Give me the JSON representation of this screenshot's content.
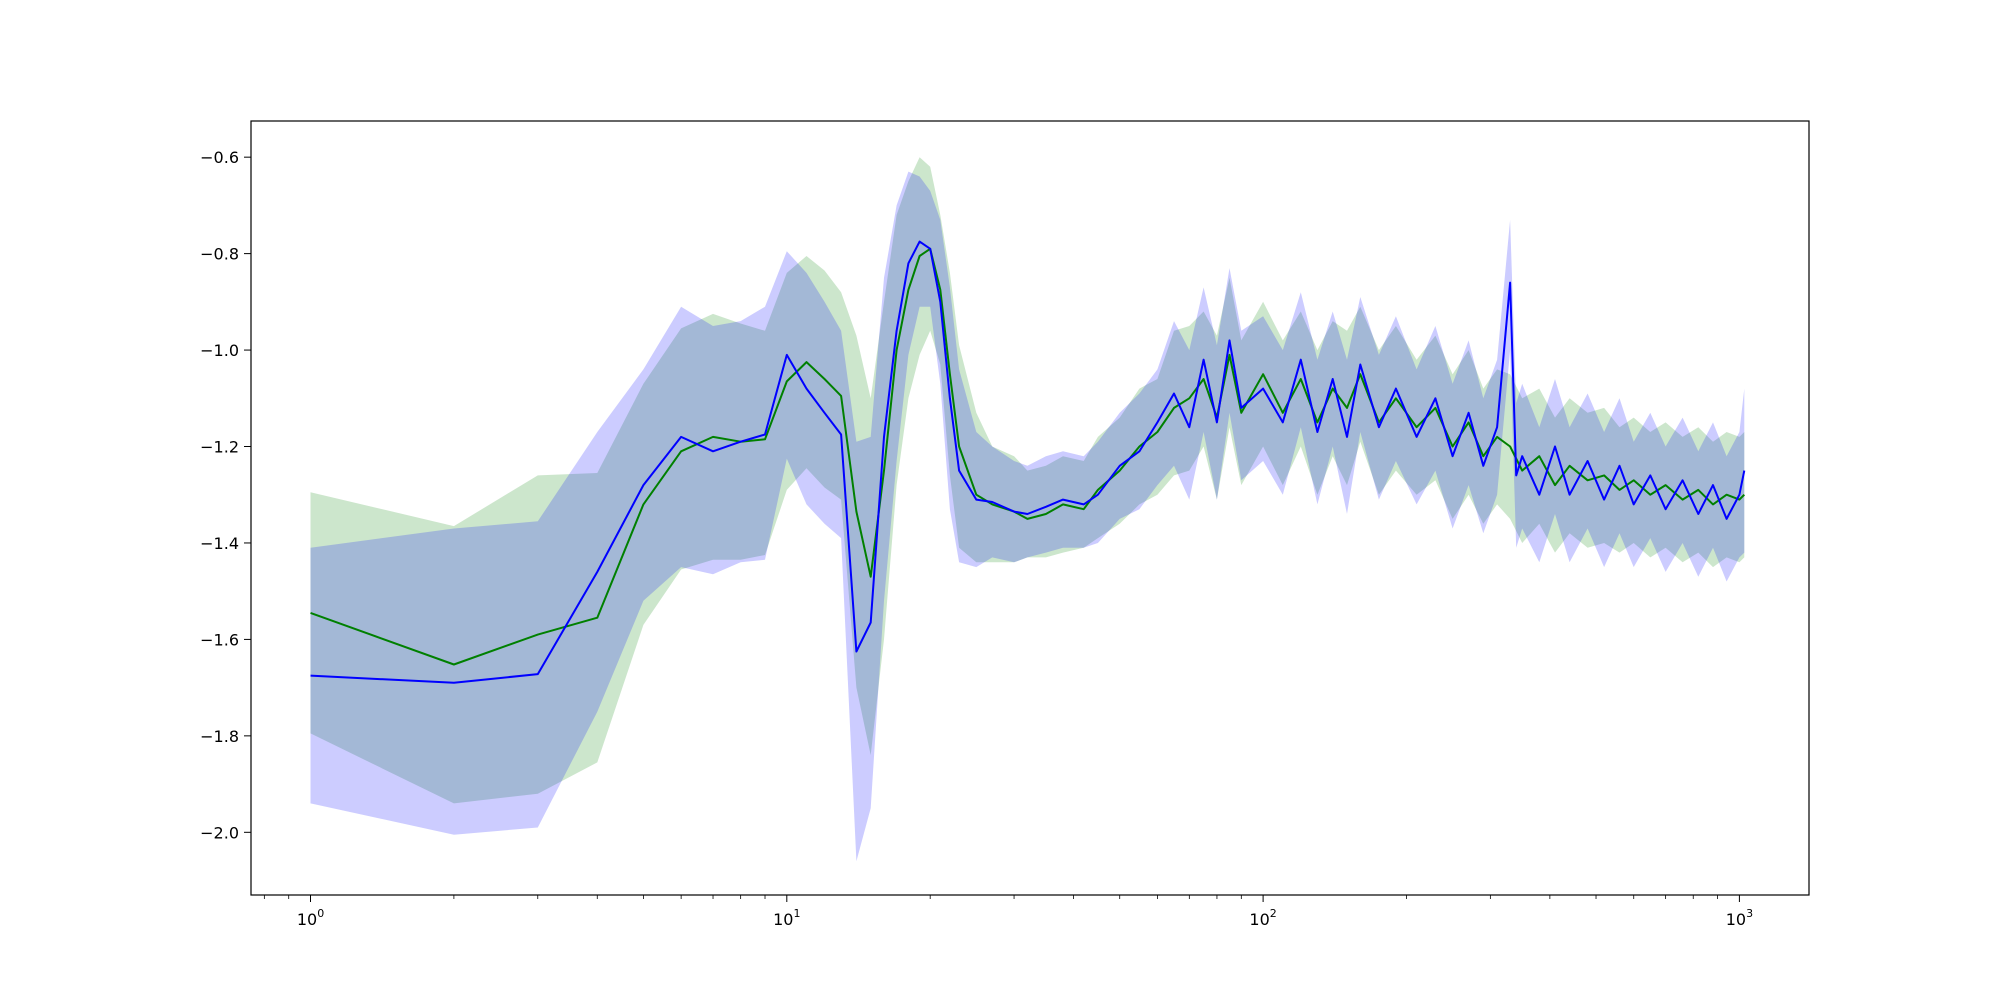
{
  "chart_data": {
    "type": "line",
    "title": "",
    "xlabel": "",
    "ylabel": "",
    "xscale": "log",
    "xlim": [
      0.75,
      1400
    ],
    "ylim": [
      -2.13,
      -0.525
    ],
    "grid": false,
    "legend": "none",
    "x_ticks": [
      {
        "value": 1,
        "base": "10",
        "exp": "0"
      },
      {
        "value": 10,
        "base": "10",
        "exp": "1"
      },
      {
        "value": 100,
        "base": "10",
        "exp": "2"
      },
      {
        "value": 1000,
        "base": "10",
        "exp": "3"
      }
    ],
    "y_ticks": [
      {
        "value": -0.6,
        "label": "−0.6"
      },
      {
        "value": -0.8,
        "label": "−0.8"
      },
      {
        "value": -1.0,
        "label": "−1.0"
      },
      {
        "value": -1.2,
        "label": "−1.2"
      },
      {
        "value": -1.4,
        "label": "−1.4"
      },
      {
        "value": -1.6,
        "label": "−1.6"
      },
      {
        "value": -1.8,
        "label": "−1.8"
      },
      {
        "value": -2.0,
        "label": "−2.0"
      }
    ],
    "series": [
      {
        "color": "#008000",
        "band_color": "#008000",
        "points": [
          [
            1,
            -1.545,
            -1.295,
            -1.795
          ],
          [
            2,
            -1.652,
            -1.365,
            -1.94
          ],
          [
            3,
            -1.59,
            -1.26,
            -1.92
          ],
          [
            4,
            -1.555,
            -1.255,
            -1.855
          ],
          [
            5,
            -1.32,
            -1.07,
            -1.57
          ],
          [
            6,
            -1.21,
            -0.955,
            -1.455
          ],
          [
            7,
            -1.18,
            -0.925,
            -1.435
          ],
          [
            8,
            -1.19,
            -0.945,
            -1.435
          ],
          [
            9,
            -1.185,
            -0.96,
            -1.425
          ],
          [
            10,
            -1.065,
            -0.84,
            -1.29
          ],
          [
            11,
            -1.025,
            -0.805,
            -1.245
          ],
          [
            12,
            -1.06,
            -0.835,
            -1.285
          ],
          [
            13,
            -1.095,
            -0.88,
            -1.31
          ],
          [
            14,
            -1.335,
            -0.97,
            -1.7
          ],
          [
            15,
            -1.47,
            -1.1,
            -1.84
          ],
          [
            16,
            -1.25,
            -0.9,
            -1.6
          ],
          [
            17,
            -1.0,
            -0.72,
            -1.28
          ],
          [
            18,
            -0.875,
            -0.65,
            -1.1
          ],
          [
            19,
            -0.805,
            -0.6,
            -1.01
          ],
          [
            20,
            -0.79,
            -0.62,
            -0.96
          ],
          [
            21,
            -0.875,
            -0.72,
            -1.03
          ],
          [
            22,
            -1.05,
            -0.84,
            -1.26
          ],
          [
            23,
            -1.2,
            -0.99,
            -1.41
          ],
          [
            25,
            -1.3,
            -1.13,
            -1.44
          ],
          [
            27,
            -1.32,
            -1.2,
            -1.44
          ],
          [
            30,
            -1.335,
            -1.22,
            -1.44
          ],
          [
            32,
            -1.35,
            -1.25,
            -1.43
          ],
          [
            35,
            -1.34,
            -1.24,
            -1.43
          ],
          [
            38,
            -1.32,
            -1.22,
            -1.42
          ],
          [
            42,
            -1.33,
            -1.23,
            -1.41
          ],
          [
            45,
            -1.29,
            -1.18,
            -1.39
          ],
          [
            50,
            -1.25,
            -1.14,
            -1.36
          ],
          [
            55,
            -1.2,
            -1.08,
            -1.32
          ],
          [
            60,
            -1.17,
            -1.06,
            -1.3
          ],
          [
            65,
            -1.12,
            -0.96,
            -1.26
          ],
          [
            70,
            -1.1,
            -0.95,
            -1.25
          ],
          [
            75,
            -1.06,
            -0.92,
            -1.2
          ],
          [
            80,
            -1.14,
            -0.97,
            -1.31
          ],
          [
            85,
            -1.01,
            -0.85,
            -1.16
          ],
          [
            90,
            -1.13,
            -0.98,
            -1.28
          ],
          [
            100,
            -1.05,
            -0.9,
            -1.2
          ],
          [
            110,
            -1.13,
            -0.98,
            -1.28
          ],
          [
            120,
            -1.06,
            -0.92,
            -1.2
          ],
          [
            130,
            -1.15,
            -1.0,
            -1.3
          ],
          [
            140,
            -1.08,
            -0.94,
            -1.22
          ],
          [
            150,
            -1.12,
            -0.96,
            -1.28
          ],
          [
            160,
            -1.05,
            -0.91,
            -1.19
          ],
          [
            175,
            -1.15,
            -1.0,
            -1.3
          ],
          [
            190,
            -1.1,
            -0.95,
            -1.25
          ],
          [
            210,
            -1.16,
            -1.02,
            -1.3
          ],
          [
            230,
            -1.12,
            -0.97,
            -1.27
          ],
          [
            250,
            -1.2,
            -1.05,
            -1.35
          ],
          [
            270,
            -1.15,
            -1.0,
            -1.3
          ],
          [
            290,
            -1.22,
            -1.08,
            -1.36
          ],
          [
            310,
            -1.18,
            -1.04,
            -1.32
          ],
          [
            330,
            -1.2,
            -1.05,
            -1.35
          ],
          [
            350,
            -1.25,
            -1.1,
            -1.4
          ],
          [
            380,
            -1.22,
            -1.08,
            -1.36
          ],
          [
            410,
            -1.28,
            -1.14,
            -1.42
          ],
          [
            440,
            -1.24,
            -1.1,
            -1.38
          ],
          [
            480,
            -1.27,
            -1.13,
            -1.41
          ],
          [
            520,
            -1.26,
            -1.12,
            -1.4
          ],
          [
            560,
            -1.29,
            -1.16,
            -1.42
          ],
          [
            600,
            -1.27,
            -1.14,
            -1.4
          ],
          [
            650,
            -1.3,
            -1.17,
            -1.43
          ],
          [
            700,
            -1.28,
            -1.15,
            -1.41
          ],
          [
            760,
            -1.31,
            -1.18,
            -1.44
          ],
          [
            820,
            -1.29,
            -1.16,
            -1.42
          ],
          [
            880,
            -1.32,
            -1.19,
            -1.45
          ],
          [
            940,
            -1.3,
            -1.17,
            -1.43
          ],
          [
            1000,
            -1.31,
            -1.18,
            -1.44
          ],
          [
            1024,
            -1.3,
            -1.17,
            -1.43
          ]
        ]
      },
      {
        "color": "#0000ff",
        "band_color": "#0000ff",
        "points": [
          [
            1,
            -1.675,
            -1.41,
            -1.94
          ],
          [
            2,
            -1.69,
            -1.37,
            -2.005
          ],
          [
            3,
            -1.672,
            -1.355,
            -1.99
          ],
          [
            4,
            -1.46,
            -1.17,
            -1.75
          ],
          [
            5,
            -1.28,
            -1.04,
            -1.52
          ],
          [
            6,
            -1.18,
            -0.91,
            -1.45
          ],
          [
            7,
            -1.21,
            -0.95,
            -1.465
          ],
          [
            8,
            -1.19,
            -0.94,
            -1.44
          ],
          [
            9,
            -1.175,
            -0.91,
            -1.435
          ],
          [
            10,
            -1.01,
            -0.795,
            -1.225
          ],
          [
            11,
            -1.08,
            -0.84,
            -1.32
          ],
          [
            12,
            -1.13,
            -0.9,
            -1.36
          ],
          [
            13,
            -1.175,
            -0.96,
            -1.39
          ],
          [
            14,
            -1.625,
            -1.19,
            -2.06
          ],
          [
            15,
            -1.565,
            -1.18,
            -1.95
          ],
          [
            16,
            -1.18,
            -0.85,
            -1.52
          ],
          [
            17,
            -0.96,
            -0.7,
            -1.23
          ],
          [
            18,
            -0.82,
            -0.63,
            -1.01
          ],
          [
            19,
            -0.775,
            -0.64,
            -0.91
          ],
          [
            20,
            -0.79,
            -0.67,
            -0.91
          ],
          [
            21,
            -0.9,
            -0.73,
            -1.07
          ],
          [
            22,
            -1.1,
            -0.87,
            -1.33
          ],
          [
            23,
            -1.25,
            -1.04,
            -1.44
          ],
          [
            25,
            -1.31,
            -1.17,
            -1.45
          ],
          [
            27,
            -1.315,
            -1.2,
            -1.43
          ],
          [
            30,
            -1.335,
            -1.23,
            -1.44
          ],
          [
            32,
            -1.34,
            -1.24,
            -1.43
          ],
          [
            35,
            -1.325,
            -1.22,
            -1.42
          ],
          [
            38,
            -1.31,
            -1.21,
            -1.41
          ],
          [
            42,
            -1.32,
            -1.22,
            -1.41
          ],
          [
            45,
            -1.3,
            -1.19,
            -1.4
          ],
          [
            50,
            -1.24,
            -1.13,
            -1.35
          ],
          [
            55,
            -1.21,
            -1.09,
            -1.33
          ],
          [
            60,
            -1.15,
            -1.04,
            -1.28
          ],
          [
            65,
            -1.09,
            -0.94,
            -1.24
          ],
          [
            70,
            -1.16,
            -1.0,
            -1.31
          ],
          [
            75,
            -1.02,
            -0.87,
            -1.17
          ],
          [
            80,
            -1.15,
            -0.99,
            -1.31
          ],
          [
            85,
            -0.98,
            -0.83,
            -1.13
          ],
          [
            90,
            -1.12,
            -0.96,
            -1.27
          ],
          [
            100,
            -1.08,
            -0.93,
            -1.23
          ],
          [
            110,
            -1.15,
            -1.0,
            -1.3
          ],
          [
            120,
            -1.02,
            -0.88,
            -1.16
          ],
          [
            130,
            -1.17,
            -1.02,
            -1.32
          ],
          [
            140,
            -1.06,
            -0.92,
            -1.2
          ],
          [
            150,
            -1.18,
            -1.02,
            -1.34
          ],
          [
            160,
            -1.03,
            -0.89,
            -1.17
          ],
          [
            175,
            -1.16,
            -1.01,
            -1.31
          ],
          [
            190,
            -1.08,
            -0.93,
            -1.23
          ],
          [
            210,
            -1.18,
            -1.04,
            -1.32
          ],
          [
            230,
            -1.1,
            -0.95,
            -1.25
          ],
          [
            250,
            -1.22,
            -1.07,
            -1.37
          ],
          [
            270,
            -1.13,
            -0.98,
            -1.28
          ],
          [
            290,
            -1.24,
            -1.1,
            -1.38
          ],
          [
            310,
            -1.16,
            -1.02,
            -1.3
          ],
          [
            330,
            -0.86,
            -0.73,
            -1.0
          ],
          [
            340,
            -1.26,
            -1.11,
            -1.41
          ],
          [
            350,
            -1.22,
            -1.07,
            -1.37
          ],
          [
            380,
            -1.3,
            -1.16,
            -1.44
          ],
          [
            410,
            -1.2,
            -1.06,
            -1.34
          ],
          [
            440,
            -1.3,
            -1.16,
            -1.44
          ],
          [
            480,
            -1.23,
            -1.09,
            -1.37
          ],
          [
            520,
            -1.31,
            -1.17,
            -1.45
          ],
          [
            560,
            -1.24,
            -1.1,
            -1.38
          ],
          [
            600,
            -1.32,
            -1.19,
            -1.45
          ],
          [
            650,
            -1.26,
            -1.13,
            -1.39
          ],
          [
            700,
            -1.33,
            -1.2,
            -1.46
          ],
          [
            760,
            -1.27,
            -1.14,
            -1.4
          ],
          [
            820,
            -1.34,
            -1.21,
            -1.47
          ],
          [
            880,
            -1.28,
            -1.15,
            -1.41
          ],
          [
            940,
            -1.35,
            -1.22,
            -1.48
          ],
          [
            1000,
            -1.3,
            -1.17,
            -1.43
          ],
          [
            1024,
            -1.25,
            -1.08,
            -1.42
          ]
        ]
      }
    ]
  }
}
